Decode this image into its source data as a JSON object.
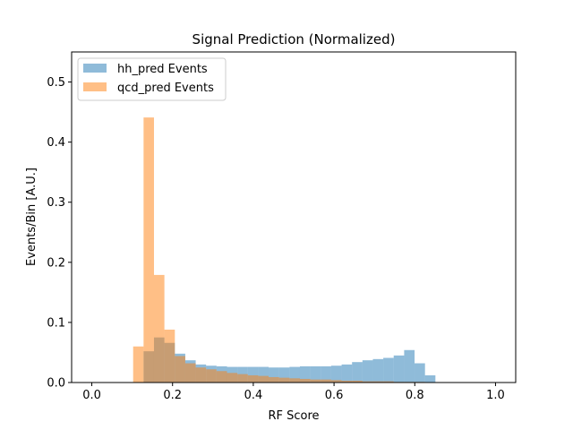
{
  "chart_data": {
    "type": "bar",
    "title": "Signal Prediction (Normalized)",
    "xlabel": "RF Score",
    "ylabel": "Events/Bin [A.U.]",
    "xlim": [
      -0.05,
      1.05
    ],
    "ylim": [
      0.0,
      0.55
    ],
    "xticks": [
      "0.0",
      "0.2",
      "0.4",
      "0.6",
      "0.8",
      "1.0"
    ],
    "yticks": [
      "0.0",
      "0.1",
      "0.2",
      "0.3",
      "0.4",
      "0.5"
    ],
    "xtick_values": [
      0.0,
      0.2,
      0.4,
      0.6,
      0.8,
      1.0
    ],
    "ytick_values": [
      0.0,
      0.1,
      0.2,
      0.3,
      0.4,
      0.5
    ],
    "bin_edges": [
      0.1024,
      0.1282,
      0.154,
      0.1798,
      0.2057,
      0.2315,
      0.2573,
      0.2831,
      0.3089,
      0.3348,
      0.3606,
      0.3864,
      0.4122,
      0.438,
      0.4638,
      0.4897,
      0.5155,
      0.5413,
      0.5671,
      0.5929,
      0.6188,
      0.6446,
      0.6704,
      0.6962,
      0.722,
      0.7478,
      0.7737,
      0.7995,
      0.8253,
      0.8511,
      0.8769
    ],
    "legend_position": "upper-left",
    "grid": false,
    "series": [
      {
        "name": "hh_pred Events",
        "color": "#1f77b4",
        "opacity": 0.5,
        "values": [
          0.0,
          0.052,
          0.075,
          0.066,
          0.048,
          0.037,
          0.03,
          0.028,
          0.027,
          0.026,
          0.026,
          0.026,
          0.026,
          0.025,
          0.025,
          0.026,
          0.027,
          0.027,
          0.027,
          0.028,
          0.03,
          0.034,
          0.037,
          0.039,
          0.041,
          0.045,
          0.054,
          0.032,
          0.012,
          0.0
        ]
      },
      {
        "name": "qcd_pred Events",
        "color": "#ff7f0e",
        "opacity": 0.5,
        "values": [
          0.06,
          0.441,
          0.179,
          0.088,
          0.044,
          0.032,
          0.025,
          0.022,
          0.019,
          0.016,
          0.014,
          0.012,
          0.011,
          0.009,
          0.008,
          0.007,
          0.006,
          0.005,
          0.005,
          0.004,
          0.003,
          0.003,
          0.002,
          0.002,
          0.002,
          0.001,
          0.001,
          0.001,
          0.0,
          0.0
        ]
      }
    ]
  }
}
